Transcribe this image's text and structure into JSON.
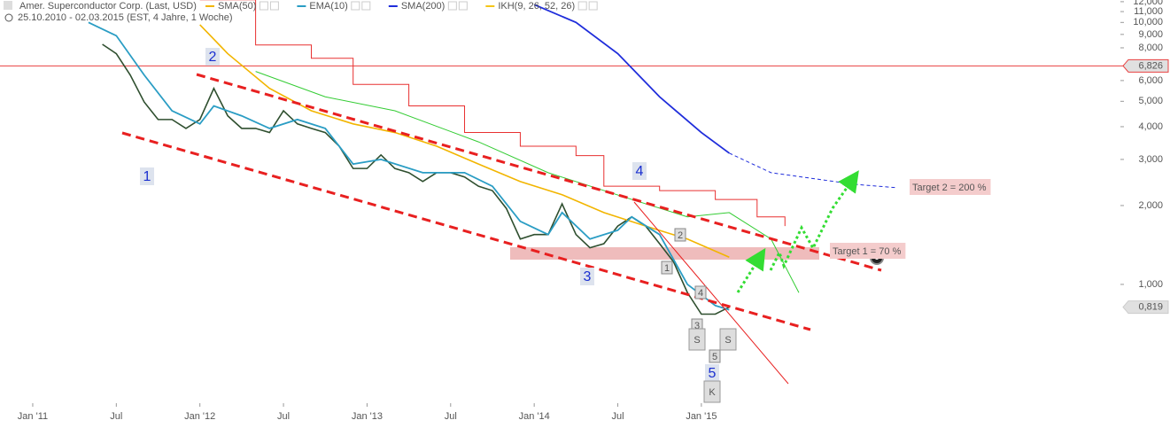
{
  "chart_data": {
    "type": "line",
    "title": "Amer. Superconductor Corp. (Last, USD)",
    "subtitle": "25.10.2010 - 02.03.2015 (EST, 4 Jahre, 1 Woche)",
    "log_scale": true,
    "xlim": [
      "2010-11",
      "2017-06"
    ],
    "xticks": [
      {
        "value": "2011-01",
        "label": "Jan '11"
      },
      {
        "value": "2011-07",
        "label": "Jul"
      },
      {
        "value": "2012-01",
        "label": "Jan '12"
      },
      {
        "value": "2012-07",
        "label": "Jul"
      },
      {
        "value": "2013-01",
        "label": "Jan '13"
      },
      {
        "value": "2013-07",
        "label": "Jul"
      },
      {
        "value": "2014-01",
        "label": "Jan '14"
      },
      {
        "value": "2014-07",
        "label": "Jul"
      },
      {
        "value": "2015-01",
        "label": "Jan '15"
      }
    ],
    "ylim": [
      0.352,
      12.18
    ],
    "yticks": [
      {
        "value": 12,
        "label": "12,000"
      },
      {
        "value": 11,
        "label": "11,000"
      },
      {
        "value": 10,
        "label": "10,000"
      },
      {
        "value": 9,
        "label": "9,000"
      },
      {
        "value": 8,
        "label": "8,000"
      },
      {
        "value": 6,
        "label": "6,000"
      },
      {
        "value": 5,
        "label": "5,000"
      },
      {
        "value": 4,
        "label": "4,000"
      },
      {
        "value": 3,
        "label": "3,000"
      },
      {
        "value": 2,
        "label": "2,000"
      },
      {
        "value": 1,
        "label": "1,000"
      }
    ],
    "price_lines": [
      {
        "value": 6.826,
        "label": "6,826",
        "color": "#e84040"
      },
      {
        "value": 0.819,
        "label": "0,819",
        "color": "#cccccc"
      }
    ],
    "series": [
      {
        "color": "#2f4f2f",
        "width": 1.6,
        "x": [
          "2011-06",
          "2011-07",
          "2011-08",
          "2011-09",
          "2011-10",
          "2011-11",
          "2011-12",
          "2012-01",
          "2012-02",
          "2012-03",
          "2012-04",
          "2012-05",
          "2012-06",
          "2012-07",
          "2012-08",
          "2012-09",
          "2012-10",
          "2012-11",
          "2012-12",
          "2013-01",
          "2013-02",
          "2013-03",
          "2013-04",
          "2013-05",
          "2013-06",
          "2013-07",
          "2013-08",
          "2013-09",
          "2013-10",
          "2013-11",
          "2013-12",
          "2014-01",
          "2014-02",
          "2014-03",
          "2014-04",
          "2014-05",
          "2014-06",
          "2014-07",
          "2014-08",
          "2014-09",
          "2014-10",
          "2014-11",
          "2014-12",
          "2015-01",
          "2015-02",
          "2015-03"
        ],
        "values": [
          8.25,
          7.6,
          6.3,
          4.97,
          4.26,
          4.26,
          3.94,
          4.26,
          5.6,
          4.4,
          3.94,
          3.94,
          3.8,
          4.6,
          4.1,
          3.94,
          3.8,
          3.37,
          2.77,
          2.77,
          3.12,
          2.77,
          2.67,
          2.47,
          2.67,
          2.67,
          2.57,
          2.37,
          2.28,
          1.95,
          1.49,
          1.55,
          1.55,
          2.03,
          1.55,
          1.38,
          1.43,
          1.67,
          1.81,
          1.67,
          1.43,
          1.22,
          0.93,
          0.77,
          0.77,
          0.819
        ]
      },
      {
        "name": "SMA(50)",
        "color": "#f2b500",
        "width": 1.6,
        "x": [
          "2012-01",
          "2012-03",
          "2012-06",
          "2012-09",
          "2012-12",
          "2013-03",
          "2013-06",
          "2013-09",
          "2013-12",
          "2014-03",
          "2014-06",
          "2014-09",
          "2014-12",
          "2015-03"
        ],
        "values": [
          9.8,
          7.6,
          5.6,
          4.6,
          4.1,
          3.8,
          3.37,
          2.88,
          2.47,
          2.2,
          1.88,
          1.67,
          1.49,
          1.27
        ]
      },
      {
        "name": "EMA(10)",
        "color": "#2a9dc4",
        "width": 1.8,
        "x": [
          "2011-05",
          "2011-07",
          "2011-09",
          "2011-11",
          "2012-01",
          "2012-02",
          "2012-04",
          "2012-06",
          "2012-08",
          "2012-10",
          "2012-12",
          "2013-02",
          "2013-05",
          "2013-08",
          "2013-10",
          "2013-12",
          "2014-02",
          "2014-03",
          "2014-05",
          "2014-07",
          "2014-08",
          "2014-10",
          "2014-12",
          "2015-02",
          "2015-03"
        ],
        "values": [
          10,
          8.9,
          6.3,
          4.6,
          4.1,
          4.8,
          4.4,
          3.94,
          4.26,
          3.94,
          2.88,
          3.0,
          2.67,
          2.67,
          2.37,
          1.74,
          1.55,
          1.88,
          1.49,
          1.61,
          1.81,
          1.55,
          1.0,
          0.83,
          0.8
        ]
      },
      {
        "name": "SMA(200)",
        "color": "#1f2ddb",
        "width": 1.8,
        "x": [
          "2014-01",
          "2014-04",
          "2014-07",
          "2014-10",
          "2015-01",
          "2015-03"
        ],
        "values": [
          11.7,
          10.0,
          7.6,
          5.2,
          3.8,
          3.17
        ]
      },
      {
        "color": "#1f2ddb",
        "width": 1,
        "dashed": true,
        "x": [
          "2015-03",
          "2015-06",
          "2015-12",
          "2016-03"
        ],
        "values": [
          3.17,
          2.67,
          2.41,
          2.34
        ]
      },
      {
        "name": "IKH(9, 26, 52, 26)",
        "color": "#f5c518",
        "line_color": "#e83030",
        "width": 1,
        "step": true,
        "x": [
          "2012-01",
          "2012-05",
          "2012-09",
          "2012-12",
          "2013-04",
          "2013-08",
          "2013-12",
          "2014-04",
          "2014-06",
          "2014-10",
          "2015-02",
          "2015-05",
          "2015-07"
        ],
        "values": [
          12.2,
          8.2,
          7.3,
          5.8,
          4.8,
          3.8,
          3.37,
          3.1,
          2.37,
          2.28,
          2.11,
          1.81,
          1.67
        ]
      },
      {
        "color": "#33cc33",
        "width": 1,
        "x": [
          "2012-05",
          "2012-10",
          "2013-03",
          "2013-09",
          "2014-02",
          "2014-08",
          "2014-12",
          "2015-03",
          "2015-06",
          "2015-08"
        ],
        "values": [
          6.5,
          5.2,
          4.6,
          3.5,
          2.67,
          2.11,
          1.81,
          1.88,
          1.49,
          0.93
        ]
      }
    ],
    "wave_labels": [
      "1",
      "2",
      "3",
      "4",
      "5"
    ],
    "bar_count_labels": [
      "1",
      "2",
      "3",
      "4",
      "5"
    ],
    "pattern_labels": [
      "S",
      "S",
      "K"
    ],
    "targets": [
      "Target 1 = 70 %",
      "Target 2 = 200 %"
    ]
  }
}
